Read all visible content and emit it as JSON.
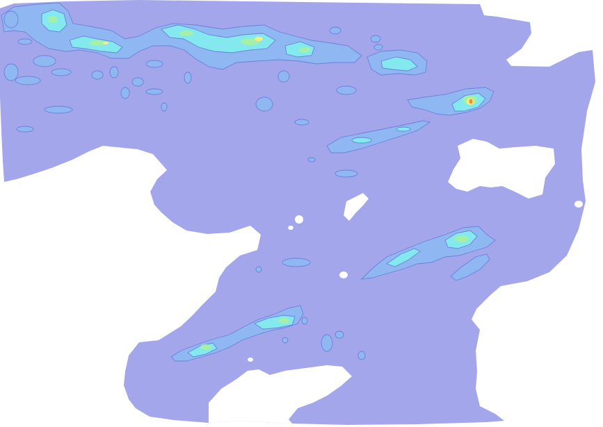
{
  "map": {
    "kind": "filled-contour-precipitation-map",
    "legend": "none",
    "labels": [],
    "colors": {
      "background": "#ffffff",
      "level_0": "#a3a6eb",
      "level_1": "#8fb8f3",
      "level_2": "#84e8ef",
      "level_3": "#a4f0a8",
      "level_4": "#f4ef7e",
      "level_5": "#f28a3c",
      "contour_line": "#6c7fd8"
    }
  }
}
